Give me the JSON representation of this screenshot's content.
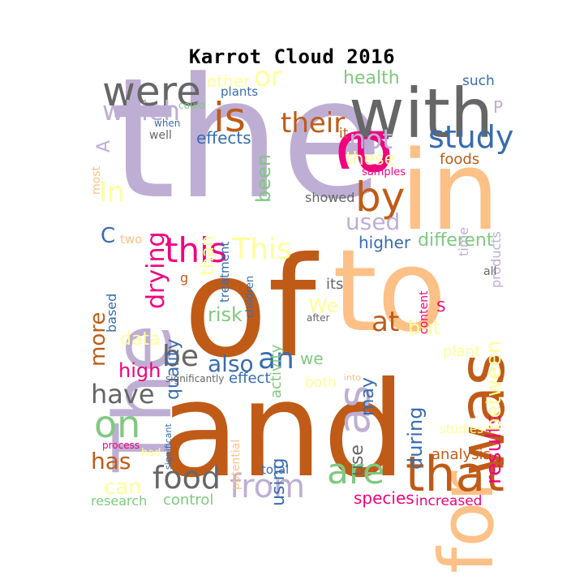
{
  "title": "Karrot Cloud 2016",
  "palette": {
    "lavender": "#beaed4",
    "orange": "#fdc086",
    "yellow": "#ffff99",
    "green": "#7fc97f",
    "blue": "#386cb0",
    "magenta": "#f0027f",
    "brown": "#bf5b17",
    "gray": "#666666"
  },
  "words": [
    {
      "text": "the",
      "color": "lavender",
      "rotated": false
    },
    {
      "text": "and",
      "color": "brown",
      "rotated": false
    },
    {
      "text": "of",
      "color": "brown",
      "rotated": false
    },
    {
      "text": "to",
      "color": "orange",
      "rotated": false
    },
    {
      "text": "in",
      "color": "orange",
      "rotated": false
    },
    {
      "text": "a",
      "color": "magenta",
      "rotated": true
    },
    {
      "text": "with",
      "color": "gray",
      "rotated": false
    },
    {
      "text": "The",
      "color": "lavender",
      "rotated": true
    },
    {
      "text": "for",
      "color": "orange",
      "rotated": true
    },
    {
      "text": "was",
      "color": "brown",
      "rotated": true
    },
    {
      "text": "that",
      "color": "brown",
      "rotated": false
    },
    {
      "text": "were",
      "color": "gray",
      "rotated": false
    },
    {
      "text": "is",
      "color": "brown",
      "rotated": false
    },
    {
      "text": "as",
      "color": "lavender",
      "rotated": true
    },
    {
      "text": "by",
      "color": "brown",
      "rotated": false
    },
    {
      "text": "are",
      "color": "green",
      "rotated": false
    },
    {
      "text": "from",
      "color": "lavender",
      "rotated": false
    },
    {
      "text": "this",
      "color": "magenta",
      "rotated": false
    },
    {
      "text": "on",
      "color": "green",
      "rotated": false
    },
    {
      "text": "food",
      "color": "gray",
      "rotated": false
    },
    {
      "text": "study",
      "color": "blue",
      "rotated": false
    },
    {
      "text": "which",
      "color": "lavender",
      "rotated": false
    },
    {
      "text": "be",
      "color": "gray",
      "rotated": false
    },
    {
      "text": "This",
      "color": "yellow",
      "rotated": false
    },
    {
      "text": "an",
      "color": "blue",
      "rotated": false
    },
    {
      "text": "have",
      "color": "gray",
      "rotated": false
    },
    {
      "text": "their",
      "color": "brown",
      "rotated": false
    },
    {
      "text": "not",
      "color": "lavender",
      "rotated": false
    },
    {
      "text": "at",
      "color": "brown",
      "rotated": false
    },
    {
      "text": "In",
      "color": "yellow",
      "rotated": false
    },
    {
      "text": "or",
      "color": "yellow",
      "rotated": false
    },
    {
      "text": "results",
      "color": "magenta",
      "rotated": true
    },
    {
      "text": "has",
      "color": "brown",
      "rotated": false
    },
    {
      "text": "used",
      "color": "lavender",
      "rotated": false
    },
    {
      "text": "drying",
      "color": "magenta",
      "rotated": true
    },
    {
      "text": "more",
      "color": "brown",
      "rotated": true
    },
    {
      "text": "between",
      "color": "yellow",
      "rotated": true
    },
    {
      "text": "also",
      "color": "blue",
      "rotated": false
    },
    {
      "text": "can",
      "color": "yellow",
      "rotated": false
    },
    {
      "text": "high",
      "color": "magenta",
      "rotated": false
    },
    {
      "text": "quality",
      "color": "blue",
      "rotated": true
    },
    {
      "text": "different",
      "color": "green",
      "rotated": false
    },
    {
      "text": "during",
      "color": "blue",
      "rotated": true
    },
    {
      "text": "use",
      "color": "gray",
      "rotated": true
    },
    {
      "text": "health",
      "color": "green",
      "rotated": false
    },
    {
      "text": "using",
      "color": "blue",
      "rotated": true
    },
    {
      "text": "risk",
      "color": "green",
      "rotated": false
    },
    {
      "text": "been",
      "color": "green",
      "rotated": true
    },
    {
      "text": "these",
      "color": "yellow",
      "rotated": false
    },
    {
      "text": "than",
      "color": "yellow",
      "rotated": true
    },
    {
      "text": "data",
      "color": "yellow",
      "rotated": false
    },
    {
      "text": "may",
      "color": "blue",
      "rotated": true
    },
    {
      "text": "but",
      "color": "yellow",
      "rotated": false
    },
    {
      "text": "We",
      "color": "yellow",
      "rotated": false
    },
    {
      "text": "effects",
      "color": "blue",
      "rotated": false
    },
    {
      "text": "effect",
      "color": "blue",
      "rotated": false
    },
    {
      "text": "higher",
      "color": "blue",
      "rotated": false
    },
    {
      "text": "species",
      "color": "magenta",
      "rotated": false
    },
    {
      "text": "control",
      "color": "green",
      "rotated": false
    },
    {
      "text": "activity",
      "color": "green",
      "rotated": true
    },
    {
      "text": "research",
      "color": "green",
      "rotated": false
    },
    {
      "text": "increased",
      "color": "magenta",
      "rotated": false
    },
    {
      "text": "analysis",
      "color": "brown",
      "rotated": false
    },
    {
      "text": "we",
      "color": "green",
      "rotated": false
    },
    {
      "text": "its",
      "color": "gray",
      "rotated": false
    },
    {
      "text": "foods",
      "color": "brown",
      "rotated": false
    },
    {
      "text": "such",
      "color": "blue",
      "rotated": false
    },
    {
      "text": "other",
      "color": "yellow",
      "rotated": false
    },
    {
      "text": "showed",
      "color": "gray",
      "rotated": false
    },
    {
      "text": "plant",
      "color": "yellow",
      "rotated": false
    },
    {
      "text": "both",
      "color": "yellow",
      "rotated": false
    },
    {
      "text": "based",
      "color": "blue",
      "rotated": true
    },
    {
      "text": "children",
      "color": "blue",
      "rotated": true
    },
    {
      "text": "treatment",
      "color": "blue",
      "rotated": true
    },
    {
      "text": "content",
      "color": "magenta",
      "rotated": true
    },
    {
      "text": "products",
      "color": "lavender",
      "rotated": true
    },
    {
      "text": "time",
      "color": "lavender",
      "rotated": true
    },
    {
      "text": "total",
      "color": "blue",
      "rotated": false
    },
    {
      "text": "two",
      "color": "orange",
      "rotated": false
    },
    {
      "text": "potential",
      "color": "orange",
      "rotated": true
    },
    {
      "text": "studies",
      "color": "yellow",
      "rotated": false
    },
    {
      "text": "plants",
      "color": "blue",
      "rotated": false
    },
    {
      "text": "well",
      "color": "gray",
      "rotated": false
    },
    {
      "text": "most",
      "color": "orange",
      "rotated": true
    },
    {
      "text": "could",
      "color": "green",
      "rotated": false
    },
    {
      "text": "when",
      "color": "blue",
      "rotated": false
    },
    {
      "text": "samples",
      "color": "magenta",
      "rotated": false
    },
    {
      "text": "significantly",
      "color": "gray",
      "rotated": false
    },
    {
      "text": "significant",
      "color": "blue",
      "rotated": true
    },
    {
      "text": "process",
      "color": "magenta",
      "rotated": false
    },
    {
      "text": "had",
      "color": "yellow",
      "rotated": false
    },
    {
      "text": "after",
      "color": "gray",
      "rotated": false
    },
    {
      "text": "into",
      "color": "orange",
      "rotated": false
    },
    {
      "text": "all",
      "color": "gray",
      "rotated": false
    },
    {
      "text": "it",
      "color": "brown",
      "rotated": false
    },
    {
      "text": "A",
      "color": "lavender",
      "rotated": true
    },
    {
      "text": "C",
      "color": "blue",
      "rotated": false
    },
    {
      "text": "P",
      "color": "lavender",
      "rotated": false
    },
    {
      "text": "S",
      "color": "magenta",
      "rotated": false
    },
    {
      "text": "g",
      "color": "brown",
      "rotated": false
    }
  ]
}
